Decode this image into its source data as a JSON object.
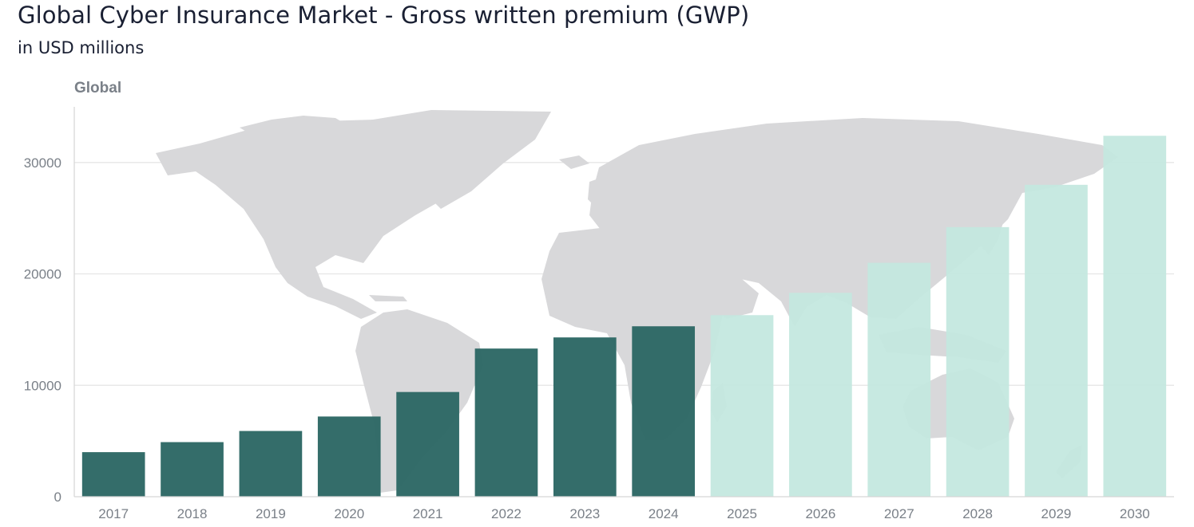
{
  "title": "Global Cyber Insurance Market - Gross written premium (GWP)",
  "subtitle": "in USD millions",
  "colors": {
    "actual": "#2d6865",
    "forecast": "#c4e8df",
    "map": "#d8d8da",
    "grid": "#e4e4e4",
    "tick": "#7a8088"
  },
  "chart_data": {
    "type": "bar",
    "region_label": "Global",
    "categories": [
      "2017",
      "2018",
      "2019",
      "2020",
      "2021",
      "2022",
      "2023",
      "2024",
      "2025",
      "2026",
      "2027",
      "2028",
      "2029",
      "2030"
    ],
    "values": [
      4000,
      4900,
      5900,
      7200,
      9400,
      13300,
      14300,
      15300,
      16300,
      18300,
      21000,
      24200,
      28000,
      32400
    ],
    "forecast_from": "2025",
    "yticks": [
      0,
      10000,
      20000,
      30000
    ],
    "ylim": [
      0,
      35000
    ],
    "xlabel": "",
    "ylabel": "",
    "grid": "horizontal",
    "background": "world-map"
  }
}
